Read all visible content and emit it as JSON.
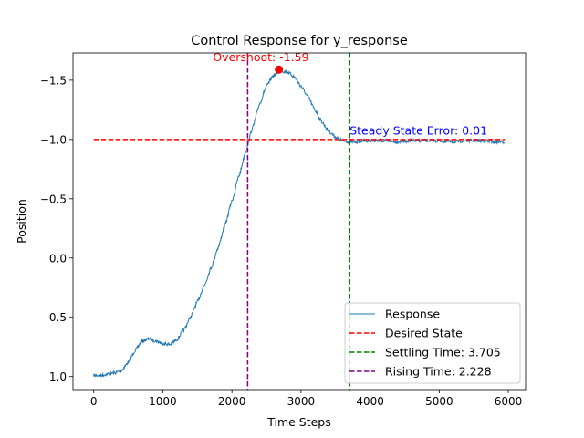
{
  "chart_data": {
    "type": "line",
    "title": "Control Response for y_response",
    "xlabel": "Time Steps",
    "ylabel": "Position",
    "xlim": [
      -300,
      6250
    ],
    "ylim": [
      1.11,
      -1.73
    ],
    "y_inverted": true,
    "grid": false,
    "x_ticks": [
      0,
      1000,
      2000,
      3000,
      4000,
      5000,
      6000
    ],
    "x_tick_labels": [
      "0",
      "1000",
      "2000",
      "3000",
      "4000",
      "5000",
      "6000"
    ],
    "y_ticks": [
      1.0,
      0.5,
      0.0,
      -0.5,
      -1.0,
      -1.5
    ],
    "y_tick_labels": [
      "1.0",
      "0.5",
      "0.0",
      "−0.5",
      "−1.0",
      "−1.5"
    ],
    "series": [
      {
        "name": "Response",
        "color": "#1f77b4",
        "x": [
          0,
          100,
          200,
          300,
          400,
          500,
          600,
          700,
          800,
          900,
          1000,
          1100,
          1200,
          1300,
          1400,
          1500,
          1600,
          1700,
          1800,
          1900,
          2000,
          2100,
          2200,
          2300,
          2400,
          2500,
          2600,
          2700,
          2800,
          2900,
          3000,
          3100,
          3200,
          3300,
          3400,
          3500,
          3600,
          3700,
          3800,
          3900,
          4000,
          4200,
          4400,
          4600,
          4800,
          5000,
          5200,
          5400,
          5600,
          5800,
          5950
        ],
        "y": [
          0.99,
          0.99,
          0.98,
          0.97,
          0.95,
          0.88,
          0.78,
          0.7,
          0.68,
          0.7,
          0.72,
          0.73,
          0.69,
          0.61,
          0.5,
          0.37,
          0.23,
          0.08,
          -0.09,
          -0.28,
          -0.48,
          -0.69,
          -0.9,
          -1.1,
          -1.3,
          -1.45,
          -1.54,
          -1.58,
          -1.57,
          -1.53,
          -1.45,
          -1.36,
          -1.25,
          -1.15,
          -1.07,
          -1.02,
          -0.99,
          -0.98,
          -0.98,
          -0.99,
          -0.99,
          -0.99,
          -0.98,
          -0.99,
          -0.99,
          -0.99,
          -0.98,
          -0.99,
          -0.99,
          -0.98,
          -0.98
        ]
      },
      {
        "name": "Desired State",
        "color": "#ff0000",
        "style": "dashed",
        "x": [
          0,
          5950
        ],
        "y": [
          -1.0,
          -1.0
        ]
      }
    ],
    "vlines": [
      {
        "name": "Settling Time: 3.705",
        "x": 3705,
        "color": "#008000",
        "style": "dashed"
      },
      {
        "name": "Rising Time: 2.228",
        "x": 2228,
        "color": "#800080",
        "style": "dashed"
      }
    ],
    "marker": {
      "x": 2680,
      "y": -1.59,
      "color": "#ff0000"
    },
    "annotations": [
      {
        "text": "Overshoot: -1.59",
        "x": 2420,
        "y": -1.66,
        "color": "#ff0000"
      },
      {
        "text": "Steady State Error: 0.01",
        "x": 4700,
        "y": -1.04,
        "color": "#0000ff"
      }
    ],
    "legend_position": "bottom-right",
    "legend": [
      "Response",
      "Desired State",
      "Settling Time: 3.705",
      "Rising Time: 2.228"
    ]
  }
}
